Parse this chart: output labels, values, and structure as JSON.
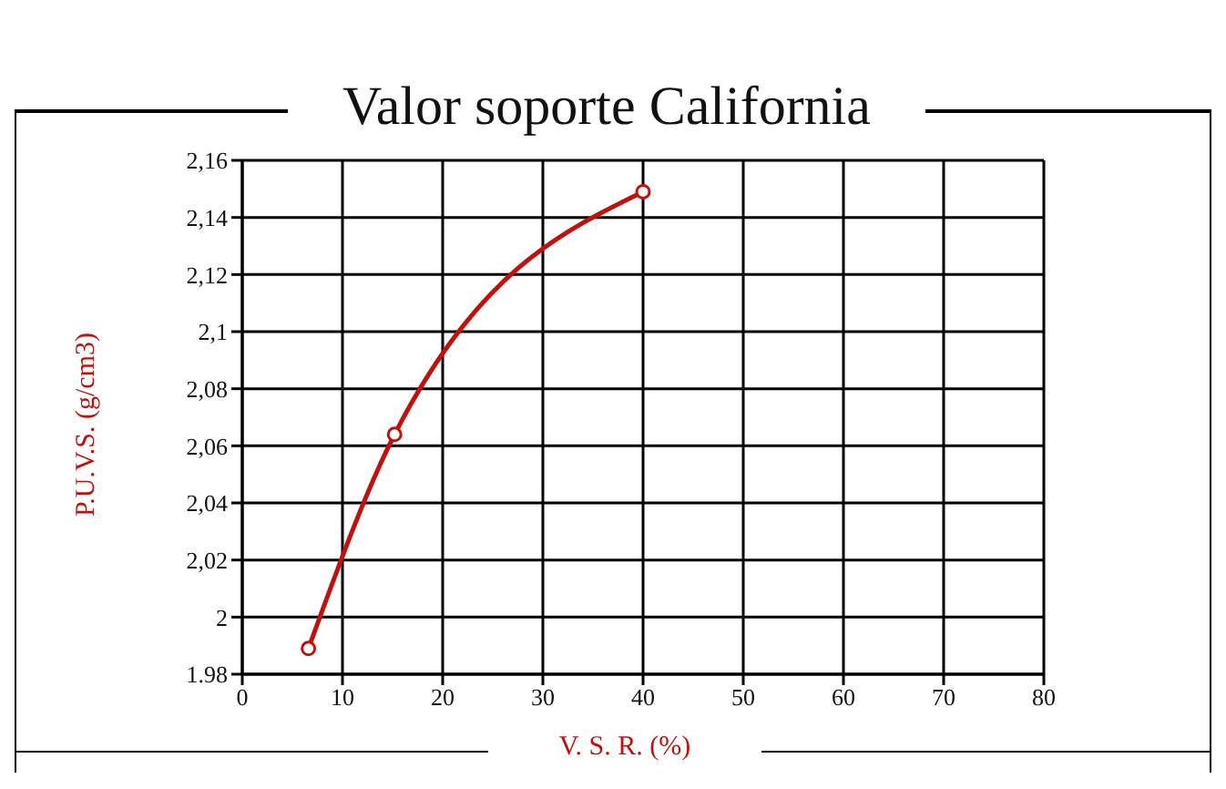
{
  "chart_data": {
    "type": "line",
    "title": "Valor soporte California",
    "xlabel": "V. S. R. (%)",
    "ylabel": "P.U.V.S. (g/cm3)",
    "x": [
      6.6,
      15.2,
      40
    ],
    "series": [
      {
        "color": "#c0120c",
        "values": [
          1.989,
          2.064,
          2.149
        ]
      }
    ],
    "xlim": [
      0,
      80
    ],
    "xticks": [
      0,
      10,
      20,
      30,
      40,
      50,
      60,
      70,
      80
    ],
    "ylim": [
      1.98,
      2.16
    ],
    "yticks": [
      {
        "value": 1.98,
        "label": "1.98"
      },
      {
        "value": 2,
        "label": "2"
      },
      {
        "value": 2.02,
        "label": "2,02"
      },
      {
        "value": 2.04,
        "label": "2,04"
      },
      {
        "value": 2.06,
        "label": "2,06"
      },
      {
        "value": 2.08,
        "label": "2,08"
      },
      {
        "value": 2.1,
        "label": "2,1"
      },
      {
        "value": 2.12,
        "label": "2,12"
      },
      {
        "value": 2.14,
        "label": "2,14"
      },
      {
        "value": 2.16,
        "label": "2,16"
      }
    ],
    "grid": true,
    "marker": "circle",
    "line_style": "solid"
  }
}
